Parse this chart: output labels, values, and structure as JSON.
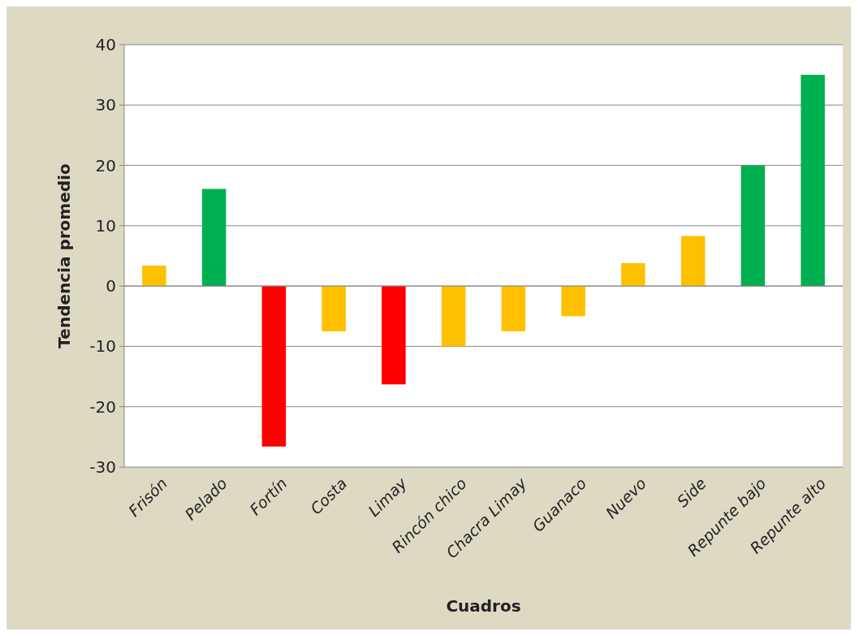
{
  "chart_data": {
    "type": "bar",
    "xlabel": "Cuadros",
    "ylabel": "Tendencia promedio",
    "categories": [
      "Frisón",
      "Pelado",
      "Fortín",
      "Costa",
      "Limay",
      "Rincón chico",
      "Chacra Limay",
      "Guanaco",
      "Nuevo",
      "Side",
      "Repunte bajo",
      "Repunte alto"
    ],
    "values": [
      3.4,
      16.1,
      -26.6,
      -7.5,
      -16.3,
      -10,
      -7.5,
      -5,
      3.8,
      8.3,
      20,
      35
    ],
    "colors": [
      "#ffc000",
      "#00b050",
      "#ff0000",
      "#ffc000",
      "#ff0000",
      "#ffc000",
      "#ffc000",
      "#ffc000",
      "#ffc000",
      "#ffc000",
      "#00b050",
      "#00b050"
    ],
    "ylim": [
      -30,
      40
    ],
    "yticks": [
      -30,
      -20,
      -10,
      0,
      10,
      20,
      30,
      40
    ],
    "grid": "y"
  }
}
